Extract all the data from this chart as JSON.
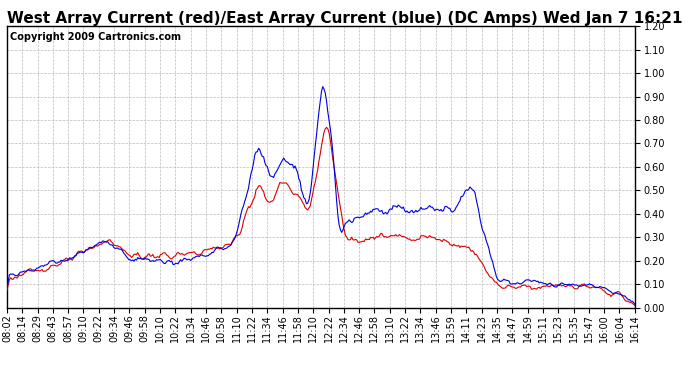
{
  "title": "West Array Current (red)/East Array Current (blue) (DC Amps) Wed Jan 7 16:21",
  "copyright": "Copyright 2009 Cartronics.com",
  "ylim": [
    0.0,
    1.2
  ],
  "yticks": [
    0.0,
    0.1,
    0.2,
    0.3,
    0.4,
    0.5,
    0.6,
    0.7,
    0.8,
    0.9,
    1.0,
    1.1,
    1.2
  ],
  "bg_color": "#ffffff",
  "grid_color": "#bbbbbb",
  "red_color": "#dd0000",
  "blue_color": "#0000dd",
  "title_fontsize": 11,
  "copyright_fontsize": 7,
  "tick_fontsize": 7,
  "x_labels": [
    "08:02",
    "08:14",
    "08:29",
    "08:43",
    "08:57",
    "09:10",
    "09:22",
    "09:34",
    "09:46",
    "09:58",
    "10:10",
    "10:22",
    "10:34",
    "10:46",
    "10:58",
    "11:10",
    "11:22",
    "11:34",
    "11:46",
    "11:58",
    "12:10",
    "12:22",
    "12:34",
    "12:46",
    "12:58",
    "13:10",
    "13:22",
    "13:34",
    "13:46",
    "13:59",
    "14:11",
    "14:23",
    "14:35",
    "14:47",
    "14:59",
    "15:11",
    "15:23",
    "15:35",
    "15:47",
    "16:00",
    "16:04",
    "16:14"
  ]
}
